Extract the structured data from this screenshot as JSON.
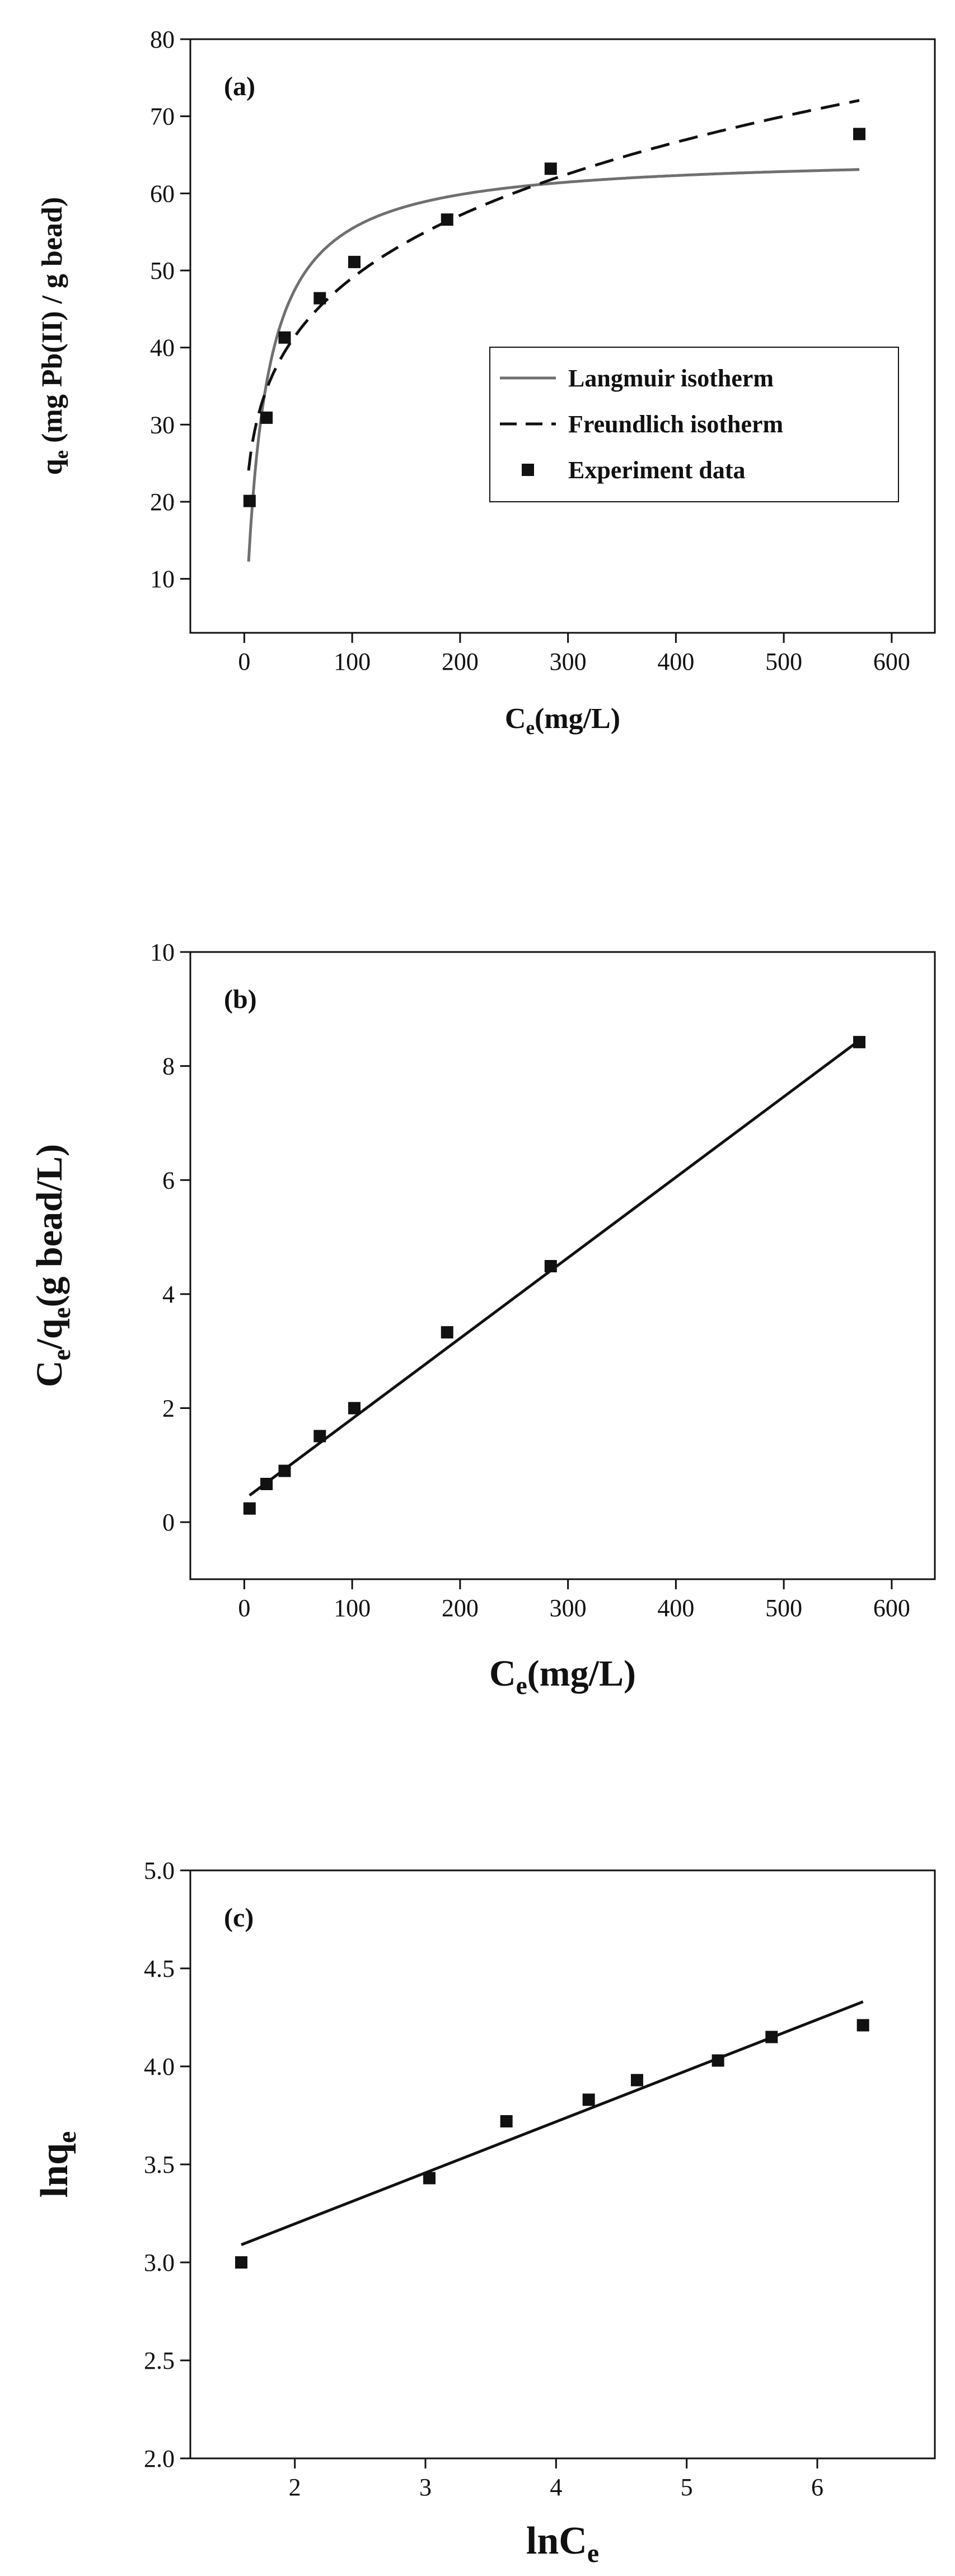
{
  "chart_data": [
    {
      "type": "scatter",
      "panel_label": "(a)",
      "xlabel": "C",
      "xlabel_sub": "e",
      "xlabel_rest": "(mg/L)",
      "ylabel": "q",
      "ylabel_sub": "e",
      "ylabel_rest": " (mg Pb(II) / g bead)",
      "xlim": [
        -50,
        640
      ],
      "ylim": [
        3,
        80
      ],
      "xticks": [
        0,
        100,
        200,
        300,
        400,
        500,
        600
      ],
      "yticks": [
        10,
        20,
        30,
        40,
        50,
        60,
        70,
        80
      ],
      "legend_position": "center-right",
      "series": [
        {
          "name": "Langmuir isotherm",
          "kind": "line",
          "color": "#707070",
          "dash": "solid",
          "model": "langmuir",
          "params": {
            "qmax": 65.0,
            "KL": 0.058
          },
          "x_range": [
            4,
            570
          ]
        },
        {
          "name": "Freundlich isotherm",
          "kind": "line",
          "color": "#111111",
          "dash": "dashed",
          "model": "freundlich",
          "params": {
            "KF": 17.7,
            "n": 4.52
          },
          "x_range": [
            4,
            570
          ]
        },
        {
          "name": "Experiment data",
          "kind": "points",
          "color": "#111111",
          "x": [
            4.9,
            20.6,
            37.4,
            70.0,
            102.0,
            188.0,
            284.0,
            570.0
          ],
          "y": [
            20.1,
            30.9,
            41.3,
            46.4,
            51.1,
            56.6,
            63.2,
            67.7
          ]
        }
      ]
    },
    {
      "type": "scatter",
      "panel_label": "(b)",
      "xlabel": "C",
      "xlabel_sub": "e",
      "xlabel_rest": "(mg/L)",
      "ylabel": "C",
      "ylabel_sub": "e",
      "ylabel_mid": "/q",
      "ylabel_sub2": "e",
      "ylabel_rest": "(g bead/L)",
      "xlim": [
        -50,
        640
      ],
      "ylim": [
        -1,
        10
      ],
      "xticks": [
        0,
        100,
        200,
        300,
        400,
        500,
        600
      ],
      "yticks": [
        0,
        2,
        4,
        6,
        8,
        10
      ],
      "series": [
        {
          "name": "",
          "kind": "line",
          "color": "#111111",
          "dash": "solid",
          "x": [
            4.9,
            570.0
          ],
          "y": [
            0.47,
            8.45
          ]
        },
        {
          "name": "",
          "kind": "points",
          "color": "#111111",
          "x": [
            4.9,
            20.6,
            37.4,
            70.0,
            102.0,
            188.0,
            284.0,
            570.0
          ],
          "y": [
            0.24,
            0.67,
            0.9,
            1.51,
            2.0,
            3.33,
            4.49,
            8.42
          ]
        }
      ]
    },
    {
      "type": "scatter",
      "panel_label": "(c)",
      "xlabel": "lnC",
      "xlabel_sub": "e",
      "xlabel_rest": "",
      "ylabel": "lnq",
      "ylabel_sub": "e",
      "ylabel_rest": "",
      "xlim": [
        1.2,
        6.9
      ],
      "ylim": [
        2.0,
        5.0
      ],
      "xticks": [
        2,
        3,
        4,
        5,
        6
      ],
      "yticks": [
        2.0,
        2.5,
        3.0,
        3.5,
        4.0,
        4.5,
        5.0
      ],
      "tick_decimals": 1,
      "series": [
        {
          "name": "",
          "kind": "line",
          "color": "#111111",
          "dash": "solid",
          "x": [
            1.59,
            6.35
          ],
          "y": [
            3.09,
            4.33
          ]
        },
        {
          "name": "",
          "kind": "points",
          "color": "#111111",
          "x": [
            1.59,
            3.03,
            3.62,
            4.25,
            4.62,
            5.24,
            5.65,
            6.35
          ],
          "y": [
            3.0,
            3.43,
            3.72,
            3.83,
            3.93,
            4.03,
            4.15,
            4.21
          ]
        }
      ]
    }
  ]
}
